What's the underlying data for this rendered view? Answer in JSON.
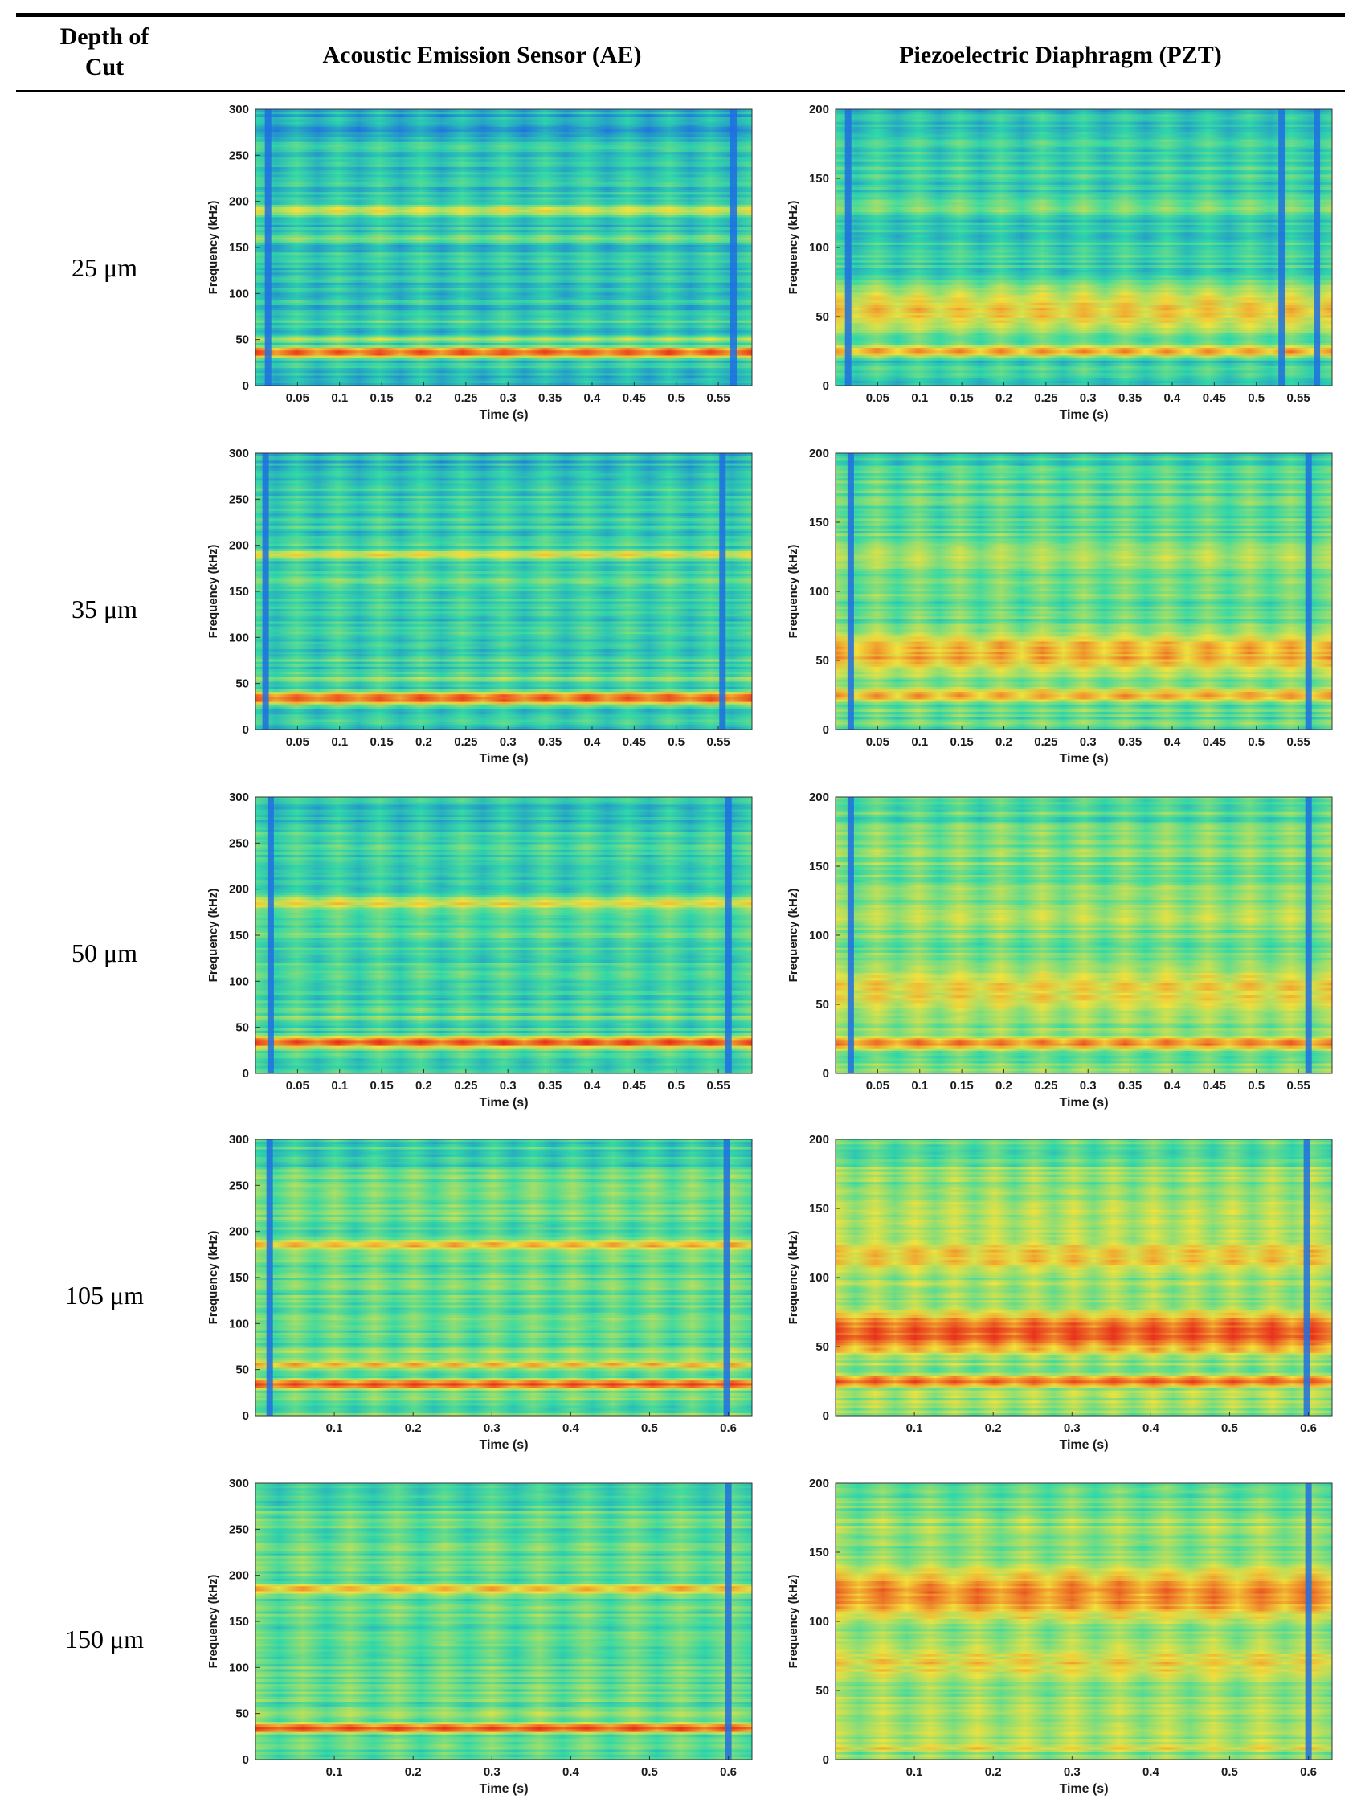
{
  "header": {
    "depth_line1": "Depth of",
    "depth_line2": "Cut",
    "ae": "Acoustic Emission Sensor (AE)",
    "pzt": "Piezoelectric Diaphragm (PZT)"
  },
  "rows": [
    {
      "depth": "25 μm"
    },
    {
      "depth": "35 μm"
    },
    {
      "depth": "50 μm"
    },
    {
      "depth": "105 μm"
    },
    {
      "depth": "150 μm"
    }
  ],
  "colors": {
    "cold": "#1e6fe0",
    "mid": "#2fd9a8",
    "warm": "#f5e23a",
    "hot": "#e8321c"
  },
  "chart_data": [
    {
      "type": "heatmap",
      "row": 0,
      "sensor": "AE",
      "title": "",
      "xlabel": "Time (s)",
      "ylabel": "Frequency (kHz)",
      "xlim": [
        0,
        0.59
      ],
      "ylim": [
        0,
        300
      ],
      "x_ticks": [
        0.05,
        0.1,
        0.15,
        0.2,
        0.25,
        0.3,
        0.35,
        0.4,
        0.45,
        0.5,
        0.55
      ],
      "y_ticks": [
        0,
        50,
        100,
        150,
        200,
        250,
        300
      ],
      "x_tick_labels": [
        "0.05",
        "0.1",
        "0.15",
        "0.2",
        "0.25",
        "0.3",
        "0.35",
        "0.4",
        "0.45",
        "0.5",
        "0.55"
      ],
      "y_tick_labels": [
        "0",
        "50",
        "100",
        "150",
        "200",
        "250",
        "300"
      ],
      "bands": [
        {
          "f": 36,
          "level": 0.95,
          "width": 6
        },
        {
          "f": 50,
          "level": 0.6,
          "width": 4
        },
        {
          "f": 70,
          "level": 0.5,
          "width": 3
        },
        {
          "f": 160,
          "level": 0.55,
          "width": 5
        },
        {
          "f": 190,
          "level": 0.65,
          "width": 7
        },
        {
          "f": 240,
          "level": 0.35,
          "width": 3
        }
      ],
      "base_level": 0.3,
      "pulse_period_s": 0.025,
      "dark_columns_s": [
        0.015,
        0.568
      ]
    },
    {
      "type": "heatmap",
      "row": 0,
      "sensor": "PZT",
      "title": "",
      "xlabel": "Time (s)",
      "ylabel": "Frequency (kHz)",
      "xlim": [
        0,
        0.59
      ],
      "ylim": [
        0,
        200
      ],
      "x_ticks": [
        0.05,
        0.1,
        0.15,
        0.2,
        0.25,
        0.3,
        0.35,
        0.4,
        0.45,
        0.5,
        0.55
      ],
      "y_ticks": [
        0,
        50,
        100,
        150,
        200
      ],
      "x_tick_labels": [
        "0.05",
        "0.1",
        "0.15",
        "0.2",
        "0.25",
        "0.3",
        "0.35",
        "0.4",
        "0.45",
        "0.5",
        "0.55"
      ],
      "y_tick_labels": [
        "0",
        "50",
        "100",
        "150",
        "200"
      ],
      "bands": [
        {
          "f": 25,
          "level": 0.8,
          "width": 5
        },
        {
          "f": 55,
          "level": 0.75,
          "width": 20
        },
        {
          "f": 130,
          "level": 0.5,
          "width": 10
        },
        {
          "f": 175,
          "level": 0.4,
          "width": 6
        }
      ],
      "base_level": 0.35,
      "pulse_period_s": 0.025,
      "dark_columns_s": [
        0.015,
        0.53,
        0.572
      ]
    },
    {
      "type": "heatmap",
      "row": 1,
      "sensor": "AE",
      "title": "",
      "xlabel": "Time (s)",
      "ylabel": "Frequency (kHz)",
      "xlim": [
        0,
        0.59
      ],
      "ylim": [
        0,
        300
      ],
      "x_ticks": [
        0.05,
        0.1,
        0.15,
        0.2,
        0.25,
        0.3,
        0.35,
        0.4,
        0.45,
        0.5,
        0.55
      ],
      "y_ticks": [
        0,
        50,
        100,
        150,
        200,
        250,
        300
      ],
      "x_tick_labels": [
        "0.05",
        "0.1",
        "0.15",
        "0.2",
        "0.25",
        "0.3",
        "0.35",
        "0.4",
        "0.45",
        "0.5",
        "0.55"
      ],
      "y_tick_labels": [
        "0",
        "50",
        "100",
        "150",
        "200",
        "250",
        "300"
      ],
      "bands": [
        {
          "f": 34,
          "level": 0.95,
          "width": 7
        },
        {
          "f": 55,
          "level": 0.6,
          "width": 4
        },
        {
          "f": 75,
          "level": 0.5,
          "width": 3
        },
        {
          "f": 160,
          "level": 0.5,
          "width": 6
        },
        {
          "f": 190,
          "level": 0.7,
          "width": 6
        }
      ],
      "base_level": 0.35,
      "pulse_period_s": 0.025,
      "dark_columns_s": [
        0.012,
        0.555
      ]
    },
    {
      "type": "heatmap",
      "row": 1,
      "sensor": "PZT",
      "title": "",
      "xlabel": "Time (s)",
      "ylabel": "Frequency (kHz)",
      "xlim": [
        0,
        0.59
      ],
      "ylim": [
        0,
        200
      ],
      "x_ticks": [
        0.05,
        0.1,
        0.15,
        0.2,
        0.25,
        0.3,
        0.35,
        0.4,
        0.45,
        0.5,
        0.55
      ],
      "y_ticks": [
        0,
        50,
        100,
        150,
        200
      ],
      "x_tick_labels": [
        "0.05",
        "0.1",
        "0.15",
        "0.2",
        "0.25",
        "0.3",
        "0.35",
        "0.4",
        "0.45",
        "0.5",
        "0.55"
      ],
      "y_tick_labels": [
        "0",
        "50",
        "100",
        "150",
        "200"
      ],
      "bands": [
        {
          "f": 25,
          "level": 0.8,
          "width": 6
        },
        {
          "f": 55,
          "level": 0.8,
          "width": 20
        },
        {
          "f": 125,
          "level": 0.6,
          "width": 15
        },
        {
          "f": 175,
          "level": 0.4,
          "width": 6
        }
      ],
      "base_level": 0.45,
      "pulse_period_s": 0.025,
      "dark_columns_s": [
        0.018,
        0.562
      ]
    },
    {
      "type": "heatmap",
      "row": 2,
      "sensor": "AE",
      "title": "",
      "xlabel": "Time (s)",
      "ylabel": "Frequency (kHz)",
      "xlim": [
        0,
        0.59
      ],
      "ylim": [
        0,
        300
      ],
      "x_ticks": [
        0.05,
        0.1,
        0.15,
        0.2,
        0.25,
        0.3,
        0.35,
        0.4,
        0.45,
        0.5,
        0.55
      ],
      "y_ticks": [
        0,
        50,
        100,
        150,
        200,
        250,
        300
      ],
      "x_tick_labels": [
        "0.05",
        "0.1",
        "0.15",
        "0.2",
        "0.25",
        "0.3",
        "0.35",
        "0.4",
        "0.45",
        "0.5",
        "0.55"
      ],
      "y_tick_labels": [
        "0",
        "50",
        "100",
        "150",
        "200",
        "250",
        "300"
      ],
      "bands": [
        {
          "f": 34,
          "level": 0.95,
          "width": 7
        },
        {
          "f": 60,
          "level": 0.55,
          "width": 4
        },
        {
          "f": 150,
          "level": 0.5,
          "width": 6
        },
        {
          "f": 185,
          "level": 0.7,
          "width": 8
        }
      ],
      "base_level": 0.38,
      "pulse_period_s": 0.025,
      "dark_columns_s": [
        0.018,
        0.562
      ]
    },
    {
      "type": "heatmap",
      "row": 2,
      "sensor": "PZT",
      "title": "",
      "xlabel": "Time (s)",
      "ylabel": "Frequency (kHz)",
      "xlim": [
        0,
        0.59
      ],
      "ylim": [
        0,
        200
      ],
      "x_ticks": [
        0.05,
        0.1,
        0.15,
        0.2,
        0.25,
        0.3,
        0.35,
        0.4,
        0.45,
        0.5,
        0.55
      ],
      "y_ticks": [
        0,
        50,
        100,
        150,
        200
      ],
      "x_tick_labels": [
        "0.05",
        "0.1",
        "0.15",
        "0.2",
        "0.25",
        "0.3",
        "0.35",
        "0.4",
        "0.45",
        "0.5",
        "0.55"
      ],
      "y_tick_labels": [
        "0",
        "50",
        "100",
        "150",
        "200"
      ],
      "bands": [
        {
          "f": 22,
          "level": 0.85,
          "width": 6
        },
        {
          "f": 60,
          "level": 0.7,
          "width": 25
        },
        {
          "f": 115,
          "level": 0.6,
          "width": 15
        },
        {
          "f": 170,
          "level": 0.45,
          "width": 8
        }
      ],
      "base_level": 0.5,
      "pulse_period_s": 0.025,
      "dark_columns_s": [
        0.018,
        0.562
      ]
    },
    {
      "type": "heatmap",
      "row": 3,
      "sensor": "AE",
      "title": "",
      "xlabel": "Time (s)",
      "ylabel": "Frequency (kHz)",
      "xlim": [
        0,
        0.63
      ],
      "ylim": [
        0,
        300
      ],
      "x_ticks": [
        0.1,
        0.2,
        0.3,
        0.4,
        0.5,
        0.6
      ],
      "y_ticks": [
        0,
        50,
        100,
        150,
        200,
        250,
        300
      ],
      "x_tick_labels": [
        "0.1",
        "0.2",
        "0.3",
        "0.4",
        "0.5",
        "0.6"
      ],
      "y_tick_labels": [
        "0",
        "50",
        "100",
        "150",
        "200",
        "250",
        "300"
      ],
      "bands": [
        {
          "f": 34,
          "level": 0.95,
          "width": 6
        },
        {
          "f": 55,
          "level": 0.8,
          "width": 5
        },
        {
          "f": 70,
          "level": 0.6,
          "width": 4
        },
        {
          "f": 185,
          "level": 0.75,
          "width": 7
        },
        {
          "f": 230,
          "level": 0.45,
          "width": 5
        }
      ],
      "base_level": 0.45,
      "pulse_period_s": 0.025,
      "dark_columns_s": [
        0.018,
        0.598
      ]
    },
    {
      "type": "heatmap",
      "row": 3,
      "sensor": "PZT",
      "title": "",
      "xlabel": "Time (s)",
      "ylabel": "Frequency (kHz)",
      "xlim": [
        0,
        0.63
      ],
      "ylim": [
        0,
        200
      ],
      "x_ticks": [
        0.1,
        0.2,
        0.3,
        0.4,
        0.5,
        0.6
      ],
      "y_ticks": [
        0,
        50,
        100,
        150,
        200
      ],
      "x_tick_labels": [
        "0.1",
        "0.2",
        "0.3",
        "0.4",
        "0.5",
        "0.6"
      ],
      "y_tick_labels": [
        "0",
        "50",
        "100",
        "150",
        "200"
      ],
      "bands": [
        {
          "f": 25,
          "level": 0.9,
          "width": 6
        },
        {
          "f": 60,
          "level": 0.95,
          "width": 18
        },
        {
          "f": 115,
          "level": 0.75,
          "width": 18
        },
        {
          "f": 150,
          "level": 0.55,
          "width": 8
        }
      ],
      "base_level": 0.55,
      "pulse_period_s": 0.025,
      "dark_columns_s": [
        0.598
      ]
    },
    {
      "type": "heatmap",
      "row": 4,
      "sensor": "AE",
      "title": "",
      "xlabel": "Time (s)",
      "ylabel": "Frequency (kHz)",
      "xlim": [
        0,
        0.63
      ],
      "ylim": [
        0,
        300
      ],
      "x_ticks": [
        0.1,
        0.2,
        0.3,
        0.4,
        0.5,
        0.6
      ],
      "y_ticks": [
        0,
        50,
        100,
        150,
        200,
        250,
        300
      ],
      "x_tick_labels": [
        "0.1",
        "0.2",
        "0.3",
        "0.4",
        "0.5",
        "0.6"
      ],
      "y_tick_labels": [
        "0",
        "50",
        "100",
        "150",
        "200",
        "250",
        "300"
      ],
      "bands": [
        {
          "f": 34,
          "level": 0.95,
          "width": 6
        },
        {
          "f": 50,
          "level": 0.6,
          "width": 5
        },
        {
          "f": 185,
          "level": 0.75,
          "width": 7
        },
        {
          "f": 210,
          "level": 0.5,
          "width": 5
        }
      ],
      "base_level": 0.45,
      "pulse_period_s": 0.03,
      "dark_columns_s": [
        0.6
      ]
    },
    {
      "type": "heatmap",
      "row": 4,
      "sensor": "PZT",
      "title": "",
      "xlabel": "Time (s)",
      "ylabel": "Frequency (kHz)",
      "xlim": [
        0,
        0.63
      ],
      "ylim": [
        0,
        200
      ],
      "x_ticks": [
        0.1,
        0.2,
        0.3,
        0.4,
        0.5,
        0.6
      ],
      "y_ticks": [
        0,
        50,
        100,
        150,
        200
      ],
      "x_tick_labels": [
        "0.1",
        "0.2",
        "0.3",
        "0.4",
        "0.5",
        "0.6"
      ],
      "y_tick_labels": [
        "0",
        "50",
        "100",
        "150",
        "200"
      ],
      "bands": [
        {
          "f": 8,
          "level": 0.7,
          "width": 4
        },
        {
          "f": 35,
          "level": 0.6,
          "width": 6
        },
        {
          "f": 70,
          "level": 0.7,
          "width": 20
        },
        {
          "f": 120,
          "level": 0.85,
          "width": 25
        }
      ],
      "base_level": 0.55,
      "pulse_period_s": 0.03,
      "dark_columns_s": [
        0.6
      ]
    }
  ]
}
